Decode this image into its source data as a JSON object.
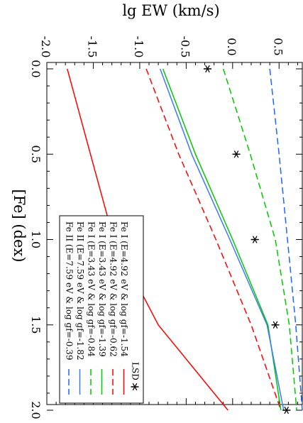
{
  "chart_data": {
    "type": "line",
    "orientation": "rotated-90-clockwise",
    "title": "",
    "xlabel": "[Fe] (dex)",
    "ylabel": "lg EW (km/s)",
    "xlim": [
      0.0,
      2.0
    ],
    "ylim": [
      -2.0,
      0.75
    ],
    "x_ticks": [
      "0.0",
      "0.5",
      "1.0",
      "1.5",
      "2.0"
    ],
    "y_ticks": [
      "-2.0",
      "-1.5",
      "-1.0",
      "-0.5",
      "0.0",
      "0.5"
    ],
    "grid": false,
    "legend_position": "bottom-left (in rotated view)",
    "series": [
      {
        "name": "Fe I (E=4.92 eV & log gf=-1.54",
        "color": "#ff0000",
        "style": "solid",
        "x": [
          0.0,
          0.5,
          1.0,
          1.5,
          2.0
        ],
        "y": [
          -1.78,
          -1.53,
          -1.28,
          -0.8,
          -0.05
        ]
      },
      {
        "name": "Fe I (E=4.92 eV & log gf=-0.62",
        "color": "#ff0000",
        "style": "dashed",
        "x": [
          0.0,
          0.5,
          1.0,
          1.5,
          2.0
        ],
        "y": [
          -0.93,
          -0.58,
          -0.18,
          0.2,
          0.52
        ]
      },
      {
        "name": "Fe I (E=3.43 eV & log gf=-1.39",
        "color": "#00c800",
        "style": "solid",
        "x": [
          0.0,
          0.5,
          1.0,
          1.5,
          2.0
        ],
        "y": [
          -0.75,
          -0.4,
          0.0,
          0.38,
          0.52
        ]
      },
      {
        "name": "Fe I (E=3.43 eV & log gf=-0.84",
        "color": "#00c800",
        "style": "dashed",
        "x": [
          0.0,
          0.5,
          1.0,
          1.5,
          2.0
        ],
        "y": [
          -0.1,
          0.19,
          0.46,
          0.61,
          0.69
        ]
      },
      {
        "name": "Fe II (E=7.59 eV & log gf=-1.82",
        "color": "#3c78ff",
        "style": "solid",
        "x": [
          0.0,
          0.5,
          1.0,
          1.5,
          2.0
        ],
        "y": [
          -0.78,
          -0.44,
          -0.03,
          0.37,
          0.55
        ]
      },
      {
        "name": "Fe II (E=7.59 eV & log gf=-0.39",
        "color": "#1e64ff",
        "style": "dashed",
        "x": [
          0.0,
          0.5,
          1.0,
          1.5,
          2.0
        ],
        "y": [
          0.4,
          0.5,
          0.59,
          0.68,
          0.75
        ]
      }
    ],
    "markers": {
      "name": "LSD",
      "symbol": "asterisk",
      "color": "#000000",
      "x": [
        0.0,
        0.5,
        1.0,
        1.5,
        2.0
      ],
      "y": [
        -0.27,
        0.04,
        0.24,
        0.46,
        0.58
      ]
    }
  }
}
